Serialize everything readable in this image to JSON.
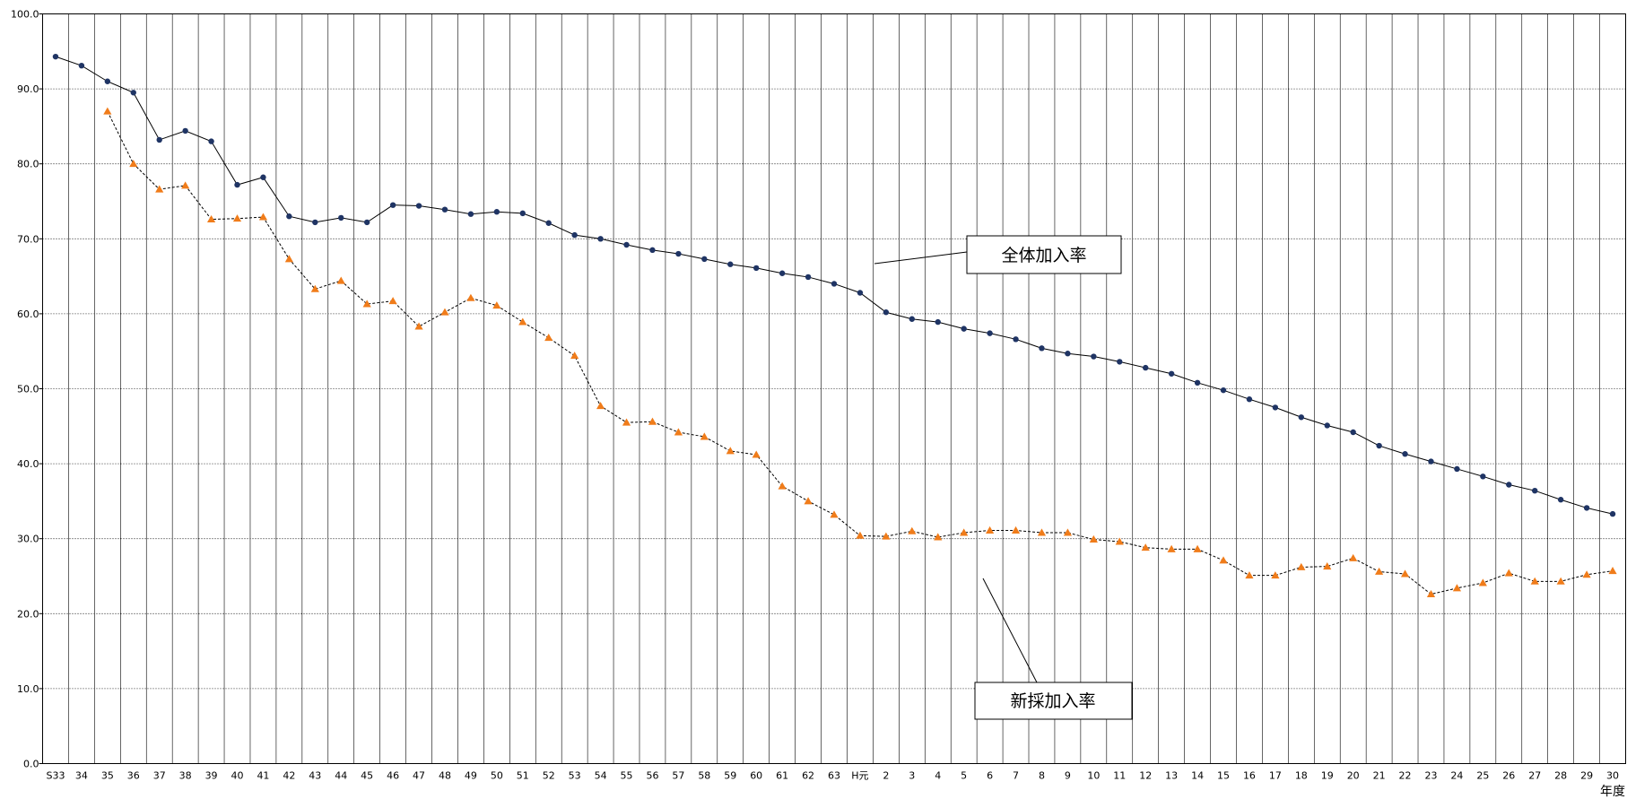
{
  "chart_data": {
    "type": "line",
    "xlabel": "年度",
    "ylabel": "",
    "ylim": [
      0,
      100
    ],
    "yticks": [
      "0.0",
      "10.0",
      "20.0",
      "30.0",
      "40.0",
      "50.0",
      "60.0",
      "70.0",
      "80.0",
      "90.0",
      "100.0"
    ],
    "grid": {
      "horizontal": "dotted",
      "vertical": "solid"
    },
    "x": [
      "S33",
      "34",
      "35",
      "36",
      "37",
      "38",
      "39",
      "40",
      "41",
      "42",
      "43",
      "44",
      "45",
      "46",
      "47",
      "48",
      "49",
      "50",
      "51",
      "52",
      "53",
      "54",
      "55",
      "56",
      "57",
      "58",
      "59",
      "60",
      "61",
      "62",
      "63",
      "H元",
      "2",
      "3",
      "4",
      "5",
      "6",
      "7",
      "8",
      "9",
      "10",
      "11",
      "12",
      "13",
      "14",
      "15",
      "16",
      "17",
      "18",
      "19",
      "20",
      "21",
      "22",
      "23",
      "24",
      "25",
      "26",
      "27",
      "28",
      "29",
      "30"
    ],
    "series": [
      {
        "name": "全体加入率",
        "color": "#1f3464",
        "marker": "circle",
        "line": "solid",
        "values": [
          94.3,
          93.1,
          91.0,
          89.5,
          83.2,
          84.4,
          83.0,
          77.2,
          78.2,
          73.0,
          72.2,
          72.8,
          72.2,
          74.5,
          74.4,
          73.9,
          73.3,
          73.6,
          73.4,
          72.1,
          70.5,
          70.0,
          69.2,
          68.5,
          68.0,
          67.3,
          66.6,
          66.1,
          65.4,
          64.9,
          64.0,
          62.8,
          60.2,
          59.3,
          58.9,
          58.0,
          57.4,
          56.6,
          55.4,
          54.7,
          54.3,
          53.6,
          52.8,
          52.0,
          50.8,
          49.8,
          48.6,
          47.5,
          46.2,
          45.1,
          44.2,
          42.4,
          41.3,
          40.3,
          39.3,
          38.3,
          37.2,
          36.4,
          35.2,
          34.1,
          33.3
        ]
      },
      {
        "name": "新採加入率",
        "color": "#f07c1a",
        "marker": "triangle",
        "line": "dashed",
        "values": [
          null,
          null,
          87.0,
          80.0,
          76.6,
          77.1,
          72.6,
          72.7,
          72.9,
          67.3,
          63.3,
          64.4,
          61.3,
          61.7,
          58.3,
          60.2,
          62.1,
          61.1,
          58.9,
          56.8,
          54.4,
          47.7,
          45.5,
          45.6,
          44.2,
          43.6,
          41.7,
          41.2,
          37.0,
          35.0,
          33.2,
          30.4,
          30.3,
          31.0,
          30.2,
          30.8,
          31.1,
          31.1,
          30.8,
          30.8,
          29.9,
          29.6,
          28.8,
          28.6,
          28.6,
          27.1,
          25.1,
          25.1,
          26.2,
          26.3,
          27.4,
          25.6,
          25.3,
          22.6,
          23.4,
          24.1,
          25.4,
          24.3,
          24.3,
          25.2,
          25.7
        ]
      }
    ]
  }
}
